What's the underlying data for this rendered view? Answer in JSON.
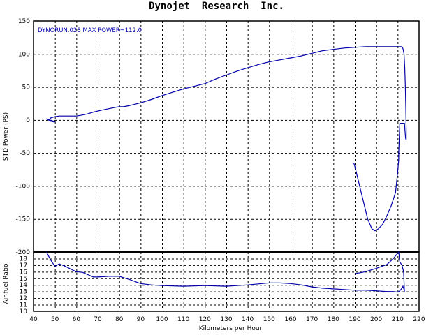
{
  "chart_data": [
    {
      "type": "line",
      "title": "Dynojet  Research  Inc.",
      "annotation": "DYNORUN.028  MAX POWER=112.0",
      "ylabel": "STD Power (PS)",
      "xlim": [
        40,
        220
      ],
      "ylim": [
        -200,
        150
      ],
      "yticks": [
        150,
        100,
        50,
        0,
        -50,
        -100,
        -150,
        -200
      ],
      "line_color": "#0000aa",
      "grid": true,
      "series": [
        {
          "x": [
            46,
            46.5,
            47.5,
            49.5,
            50,
            49.5,
            48,
            47,
            48,
            50,
            52,
            55,
            58,
            60,
            62,
            65,
            68,
            72,
            75,
            78,
            80,
            82,
            85,
            90,
            95,
            100,
            105,
            110,
            115,
            120,
            125,
            130,
            135,
            140,
            145,
            150,
            155,
            160,
            165,
            170,
            175,
            180,
            185,
            190,
            195,
            200,
            205,
            208,
            210,
            211,
            212,
            212.5,
            213,
            213.3,
            213.6,
            213.8,
            213.9,
            214,
            214,
            213.7,
            213.2,
            212,
            211,
            210.5,
            210.5,
            210,
            209,
            207,
            205,
            203,
            201,
            199.5,
            198,
            196,
            194.5,
            193,
            191.5,
            190,
            189.5
          ],
          "y": [
            2,
            1,
            0,
            -2,
            -3,
            -3,
            -2,
            0,
            3,
            5,
            6,
            6,
            6,
            6,
            7,
            9,
            12,
            15,
            17,
            19,
            20,
            20,
            22,
            26,
            31,
            37,
            42,
            47,
            51,
            55,
            62,
            68,
            74,
            79,
            84,
            88,
            91,
            94,
            97,
            101,
            105,
            107,
            109,
            110,
            111,
            111,
            111,
            111,
            111,
            111,
            111,
            108,
            100,
            80,
            50,
            20,
            0,
            -15,
            -30,
            -28,
            -5,
            -5,
            -5,
            -50,
            -60,
            -80,
            -110,
            -130,
            -145,
            -158,
            -165,
            -168,
            -165,
            -150,
            -130,
            -110,
            -90,
            -70,
            -65
          ]
        }
      ]
    },
    {
      "type": "line",
      "ylabel": "Air-fuel Ratio",
      "xlabel": "Kilometers per Hour",
      "xlim": [
        40,
        220
      ],
      "xticks": [
        40,
        50,
        60,
        70,
        80,
        90,
        100,
        110,
        120,
        130,
        140,
        150,
        160,
        170,
        180,
        190,
        200,
        210,
        220
      ],
      "ylim": [
        10,
        19
      ],
      "yticks": [
        18,
        17,
        16,
        15,
        14,
        13,
        12,
        11,
        10
      ],
      "line_color": "#0000aa",
      "grid": true,
      "series": [
        {
          "x": [
            46,
            48,
            50,
            52,
            55,
            58,
            60,
            63,
            65,
            68,
            70,
            75,
            80,
            85,
            90,
            95,
            100,
            110,
            120,
            130,
            140,
            150,
            155,
            160,
            165,
            170,
            175,
            180,
            185,
            190,
            195,
            200,
            205,
            208,
            210,
            211,
            212,
            212.5,
            213,
            213.2,
            212.8,
            212,
            211,
            210.5,
            210,
            208,
            205,
            200,
            195,
            190
          ],
          "y": [
            19,
            17.8,
            16.8,
            17.2,
            16.8,
            16.3,
            16,
            15.9,
            15.6,
            15.2,
            15.2,
            15.3,
            15.3,
            14.8,
            14.2,
            14.0,
            13.9,
            13.8,
            13.9,
            13.8,
            14.0,
            14.3,
            14.3,
            14.2,
            14.0,
            13.7,
            13.5,
            13.4,
            13.3,
            13.2,
            13.2,
            13.1,
            13.0,
            13.0,
            12.9,
            13.1,
            13.5,
            13.8,
            13.3,
            13.0,
            16.0,
            17.0,
            17.5,
            19.0,
            18.8,
            18.0,
            17.1,
            16.5,
            16.0,
            15.7
          ]
        }
      ]
    }
  ]
}
